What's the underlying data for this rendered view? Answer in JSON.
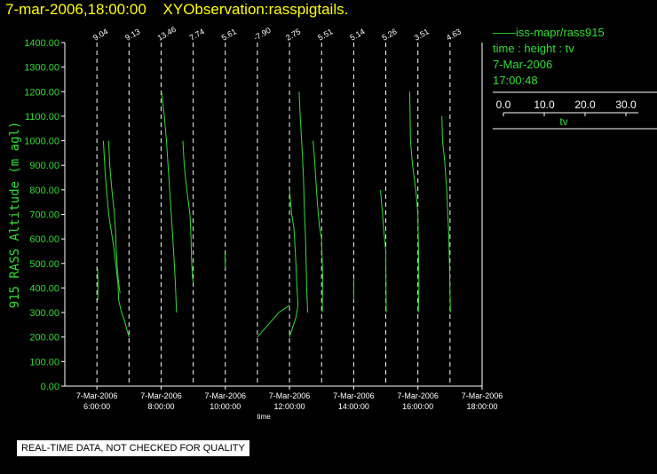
{
  "header": {
    "datetime": "7-mar-2006,18:00:00",
    "observation": "XYObservation:rasspigtails."
  },
  "legend": {
    "line1": "iss-mapr/rass915",
    "line2": "time : height : tv",
    "line3": "7-Mar-2006",
    "line4": "17:00:48",
    "scale_ticks": [
      "0.0",
      "10.0",
      "20.0",
      "30.0"
    ],
    "scale_label": "tv"
  },
  "quality_notice": "REAL-TIME DATA, NOT CHECKED FOR QUALITY",
  "colors": {
    "title": "#ffff00",
    "trace": "#33dd33",
    "axis": "#ffffff",
    "background": "#000000"
  },
  "chart_data": {
    "type": "line",
    "xlabel": "time",
    "ylabel": "915 RASS Altitude (m agl)",
    "ylim": [
      0,
      1400
    ],
    "yticks": [
      "0.00",
      "100.00",
      "200.00",
      "300.00",
      "400.00",
      "500.00",
      "600.00",
      "700.00",
      "800.00",
      "900.00",
      "1000.00",
      "1100.00",
      "1200.00",
      "1300.00",
      "1400.00"
    ],
    "xlim_hours": [
      5.0,
      18.0
    ],
    "xticks": [
      {
        "hour": 6,
        "date": "7-Mar-2006",
        "time": "6:00:00"
      },
      {
        "hour": 8,
        "date": "7-Mar-2006",
        "time": "8:00:00"
      },
      {
        "hour": 10,
        "date": "7-Mar-2006",
        "time": "10:00:00"
      },
      {
        "hour": 12,
        "date": "7-Mar-2006",
        "time": "12:00:00"
      },
      {
        "hour": 14,
        "date": "7-Mar-2006",
        "time": "14:00:00"
      },
      {
        "hour": 16,
        "date": "7-Mar-2006",
        "time": "16:00:00"
      },
      {
        "hour": 18,
        "date": "7-Mar-2006",
        "time": "18:00:00"
      }
    ],
    "tv_scale_hours_per_deg": 0.0667,
    "profiles": [
      {
        "hour": 6.0,
        "label": "9.04",
        "points": [
          [
            0.4,
            350
          ],
          [
            0.5,
            420
          ],
          [
            0.3,
            480
          ]
        ]
      },
      {
        "hour": 7.0,
        "label": "9.13",
        "points": [
          [
            -12.0,
            1000
          ],
          [
            -11.0,
            850
          ],
          [
            -9.5,
            700
          ],
          [
            -7.0,
            560
          ],
          [
            -5.2,
            420
          ],
          [
            -4.8,
            350
          ],
          [
            -3.5,
            300
          ],
          [
            -2.2,
            270
          ],
          [
            -1.0,
            230
          ],
          [
            0.0,
            200
          ]
        ]
      },
      {
        "hour": 7.0,
        "label": "",
        "points": [
          [
            -9.5,
            1000
          ],
          [
            -9.0,
            900
          ],
          [
            -8.0,
            800
          ],
          [
            -6.8,
            700
          ],
          [
            -6.2,
            620
          ],
          [
            -6.0,
            560
          ],
          [
            -5.6,
            500
          ],
          [
            -5.0,
            430
          ],
          [
            -4.2,
            380
          ]
        ]
      },
      {
        "hour": 8.0,
        "label": "13.46",
        "points": [
          [
            0.2,
            1200
          ],
          [
            1.5,
            1100
          ],
          [
            2.5,
            1000
          ],
          [
            4.0,
            800
          ],
          [
            5.5,
            600
          ],
          [
            6.5,
            450
          ],
          [
            7.0,
            350
          ],
          [
            7.2,
            300
          ]
        ]
      },
      {
        "hour": 9.0,
        "label": "7.74",
        "points": [
          [
            -4.8,
            1000
          ],
          [
            -4.2,
            900
          ],
          [
            -3.0,
            800
          ],
          [
            -1.5,
            700
          ],
          [
            -1.0,
            600
          ],
          [
            -0.8,
            520
          ],
          [
            -0.4,
            450
          ],
          [
            0.0,
            420
          ]
        ]
      },
      {
        "hour": 10.0,
        "label": "5.61",
        "points": [
          [
            -0.2,
            540
          ],
          [
            0.0,
            480
          ]
        ]
      },
      {
        "hour": 11.0,
        "label": "-7.90",
        "points": [
          [
            0.0,
            200
          ],
          [
            5.0,
            250
          ],
          [
            10.0,
            300
          ],
          [
            15.0,
            330
          ]
        ]
      },
      {
        "hour": 12.0,
        "label": "2.75",
        "points": [
          [
            0.0,
            800
          ],
          [
            1.0,
            700
          ],
          [
            2.0,
            650
          ],
          [
            2.5,
            580
          ],
          [
            3.0,
            500
          ],
          [
            3.5,
            400
          ],
          [
            4.0,
            330
          ],
          [
            3.0,
            280
          ],
          [
            1.5,
            240
          ],
          [
            0.0,
            200
          ]
        ]
      },
      {
        "hour": 12.0,
        "label": "",
        "points": [
          [
            4.5,
            1200
          ],
          [
            5.0,
            1100
          ],
          [
            6.0,
            950
          ],
          [
            6.5,
            850
          ],
          [
            7.0,
            700
          ],
          [
            7.5,
            600
          ],
          [
            8.0,
            400
          ],
          [
            8.5,
            300
          ]
        ]
      },
      {
        "hour": 13.0,
        "label": "5.51",
        "points": [
          [
            -4.0,
            1000
          ],
          [
            -3.5,
            950
          ],
          [
            -2.0,
            750
          ],
          [
            -1.0,
            650
          ],
          [
            0.0,
            600
          ],
          [
            0.5,
            450
          ],
          [
            0.3,
            300
          ]
        ]
      },
      {
        "hour": 14.0,
        "label": "5.14",
        "points": [
          [
            0.1,
            440
          ],
          [
            0.0,
            350
          ]
        ]
      },
      {
        "hour": 15.0,
        "label": "5.26",
        "points": [
          [
            -2.5,
            800
          ],
          [
            -1.5,
            700
          ],
          [
            -0.8,
            620
          ],
          [
            0.0,
            550
          ],
          [
            0.2,
            300
          ]
        ]
      },
      {
        "hour": 16.0,
        "label": "3.51",
        "points": [
          [
            -3.8,
            1200
          ],
          [
            -3.5,
            1000
          ],
          [
            -2.5,
            900
          ],
          [
            -1.0,
            800
          ],
          [
            0.0,
            700
          ],
          [
            0.3,
            550
          ],
          [
            0.5,
            400
          ],
          [
            0.2,
            300
          ]
        ]
      },
      {
        "hour": 17.0,
        "label": "4.63",
        "points": [
          [
            -3.8,
            1100
          ],
          [
            -3.5,
            1000
          ],
          [
            -2.5,
            920
          ],
          [
            -1.5,
            800
          ],
          [
            -0.5,
            600
          ],
          [
            0.0,
            400
          ],
          [
            0.2,
            300
          ]
        ]
      }
    ]
  }
}
